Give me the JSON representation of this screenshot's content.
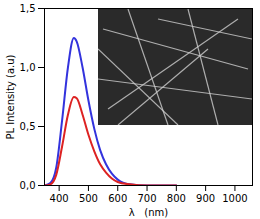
{
  "chart_data": {
    "type": "line",
    "x_label": "λ   (nm)",
    "y_label": "PL Intensity (a.u)",
    "x": [
      350,
      370,
      390,
      410,
      430,
      450,
      460,
      480,
      500,
      520,
      540,
      560,
      580,
      600,
      640,
      700,
      800
    ],
    "series": [
      {
        "color": "#3333dd",
        "values": [
          0,
          0.02,
          0.15,
          0.55,
          1.0,
          1.25,
          1.22,
          1.0,
          0.72,
          0.48,
          0.3,
          0.18,
          0.1,
          0.05,
          0.01,
          0,
          0
        ]
      },
      {
        "color": "#dd2222",
        "values": [
          0,
          0.01,
          0.09,
          0.33,
          0.6,
          0.75,
          0.74,
          0.6,
          0.43,
          0.29,
          0.18,
          0.11,
          0.06,
          0.03,
          0.01,
          0,
          0
        ]
      }
    ],
    "xlim": [
      350,
      1060
    ],
    "xticks": [
      400,
      500,
      600,
      700,
      800,
      900,
      1000
    ],
    "ylim": [
      0,
      1.5
    ],
    "yticks": [
      {
        "value": 0,
        "label": "0,0"
      },
      {
        "value": 0.5,
        "label": "0,5"
      },
      {
        "value": 1,
        "label": "1,0"
      },
      {
        "value": 1.5,
        "label": "1,5"
      }
    ],
    "grid": false
  }
}
